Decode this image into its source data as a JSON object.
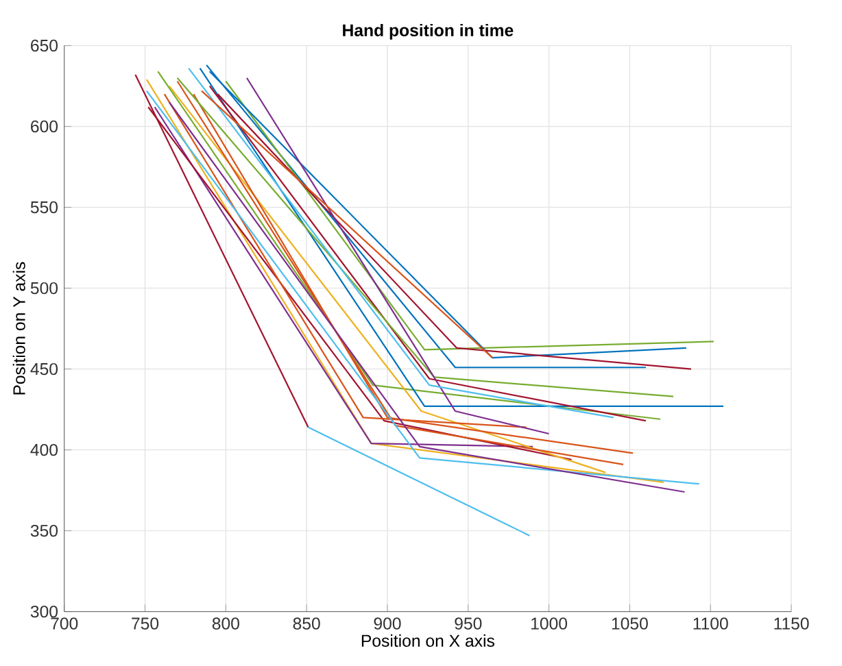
{
  "chart_data": {
    "type": "line",
    "title": "Hand position in time",
    "xlabel": "Position on X axis",
    "ylabel": "Position on Y axis",
    "xlim": [
      700,
      1150
    ],
    "ylim": [
      300,
      650
    ],
    "xticks": [
      700,
      750,
      800,
      850,
      900,
      950,
      1000,
      1050,
      1100,
      1150
    ],
    "yticks": [
      300,
      350,
      400,
      450,
      500,
      550,
      600,
      650
    ],
    "grid": true,
    "series": [
      {
        "color": "#a2142f",
        "x": [
          744,
          851
        ],
        "values": [
          632,
          414
        ]
      },
      {
        "color": "#4dbeee",
        "x": [
          851,
          988
        ],
        "values": [
          414,
          347
        ]
      },
      {
        "color": "#edb120",
        "x": [
          751,
          890,
          1071
        ],
        "values": [
          629,
          404,
          380
        ]
      },
      {
        "color": "#7e2f8e",
        "x": [
          756,
          890,
          990
        ],
        "values": [
          612,
          404,
          402
        ]
      },
      {
        "color": "#a2142f",
        "x": [
          752,
          898,
          1014
        ],
        "values": [
          612,
          418,
          394
        ]
      },
      {
        "color": "#77ac30",
        "x": [
          758,
          891,
          1069
        ],
        "values": [
          634,
          440,
          419
        ]
      },
      {
        "color": "#edb120",
        "x": [
          765,
          921,
          1035
        ],
        "values": [
          625,
          424,
          386
        ]
      },
      {
        "color": "#d95319",
        "x": [
          780,
          900,
          1052
        ],
        "values": [
          620,
          420,
          398
        ]
      },
      {
        "color": "#d95319",
        "x": [
          770,
          905,
          1046
        ],
        "values": [
          628,
          415,
          391
        ]
      },
      {
        "color": "#d95319",
        "x": [
          762,
          885,
          986
        ],
        "values": [
          620,
          420,
          414
        ]
      },
      {
        "color": "#4dbeee",
        "x": [
          751,
          920,
          1093
        ],
        "values": [
          622,
          395,
          379
        ]
      },
      {
        "color": "#7e2f8e",
        "x": [
          765,
          920,
          1084
        ],
        "values": [
          615,
          402,
          374
        ]
      },
      {
        "color": "#0072bd",
        "x": [
          784,
          923,
          1108
        ],
        "values": [
          636,
          427,
          427
        ]
      },
      {
        "color": "#0072bd",
        "x": [
          788,
          942,
          1060
        ],
        "values": [
          638,
          451,
          451
        ]
      },
      {
        "color": "#a2142f",
        "x": [
          790,
          926,
          1060
        ],
        "values": [
          625,
          444,
          418
        ]
      },
      {
        "color": "#77ac30",
        "x": [
          770,
          929,
          1077
        ],
        "values": [
          630,
          445,
          433
        ]
      },
      {
        "color": "#77ac30",
        "x": [
          800,
          923,
          1102
        ],
        "values": [
          628,
          462,
          467
        ]
      },
      {
        "color": "#0072bd",
        "x": [
          790,
          965,
          1085
        ],
        "values": [
          634,
          457,
          463
        ]
      },
      {
        "color": "#a2142f",
        "x": [
          795,
          943,
          1088
        ],
        "values": [
          620,
          463,
          450
        ]
      },
      {
        "color": "#7e2f8e",
        "x": [
          813,
          942,
          1000
        ],
        "values": [
          630,
          424,
          410
        ]
      },
      {
        "color": "#4dbeee",
        "x": [
          777,
          926,
          1040
        ],
        "values": [
          636,
          440,
          420
        ]
      },
      {
        "color": "#d95319",
        "x": [
          785,
          965
        ],
        "values": [
          622,
          457
        ]
      }
    ]
  }
}
